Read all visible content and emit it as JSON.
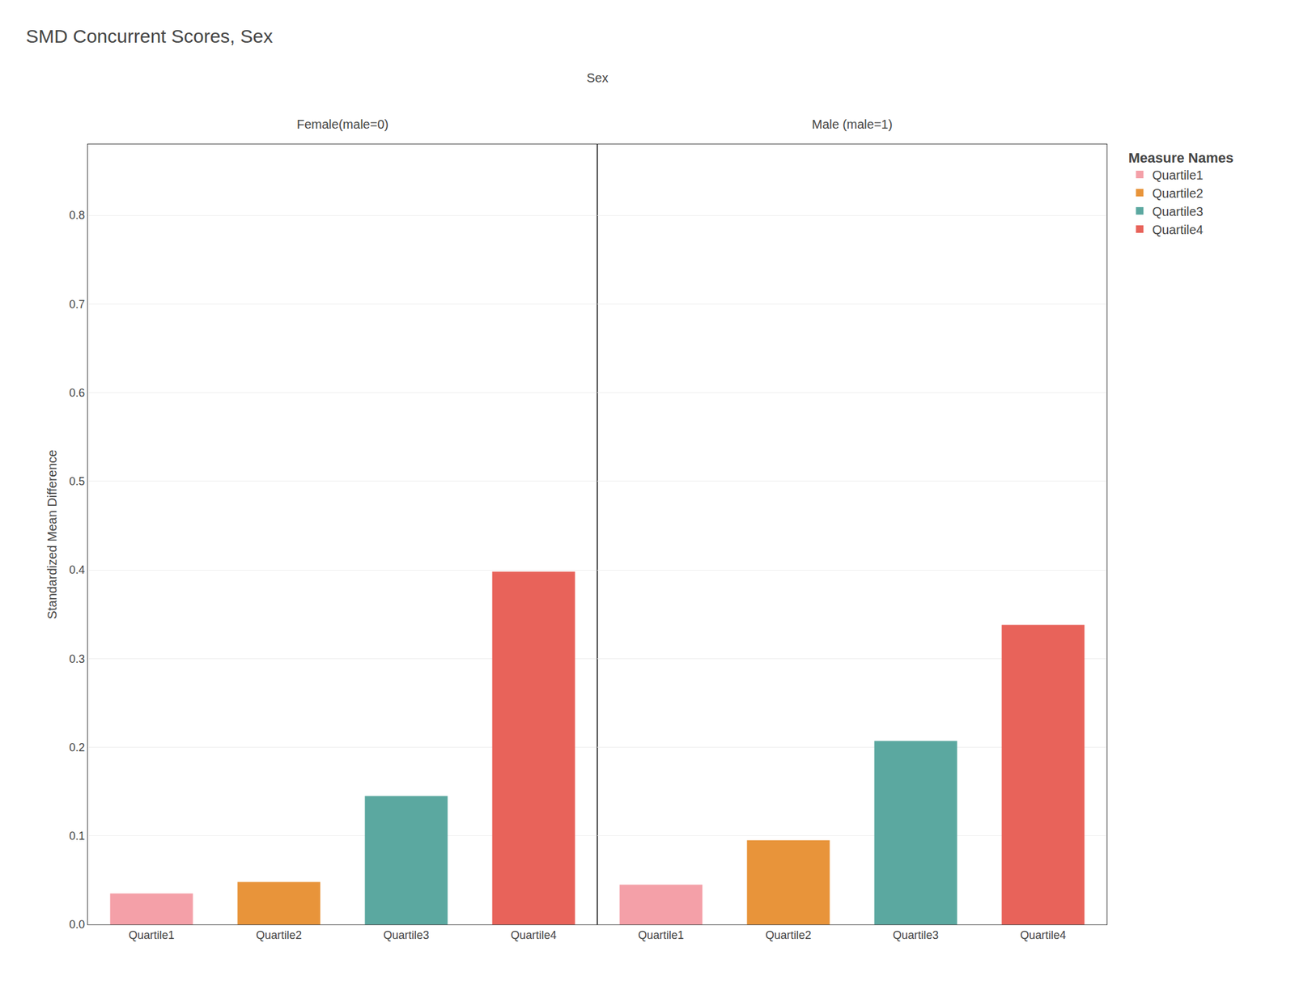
{
  "chart_data": {
    "type": "bar",
    "title": "SMD Concurrent Scores, Sex",
    "ylabel": "Standardized Mean Difference",
    "panel_title": "Sex",
    "categories": [
      "Quartile1",
      "Quartile2",
      "Quartile3",
      "Quartile4"
    ],
    "colors": [
      "#F4A0A8",
      "#E8943A",
      "#5BA8A0",
      "#E8635A"
    ],
    "legend_title": "Measure Names",
    "legend_labels": [
      "Quartile1",
      "Quartile2",
      "Quartile3",
      "Quartile4"
    ],
    "panels": [
      {
        "title": "Female(male=0)",
        "values": [
          0.035,
          0.048,
          0.145,
          0.398
        ]
      },
      {
        "title": "Male (male=1)",
        "values": [
          0.045,
          0.095,
          0.207,
          0.338
        ]
      }
    ],
    "ylim": [
      0,
      0.88
    ],
    "yticks": [
      {
        "value": 0,
        "label": "0.0"
      },
      0.1,
      0.2,
      0.3,
      0.4,
      0.5,
      0.6,
      0.7,
      0.8
    ],
    "grid": true,
    "legend": "upper right"
  }
}
